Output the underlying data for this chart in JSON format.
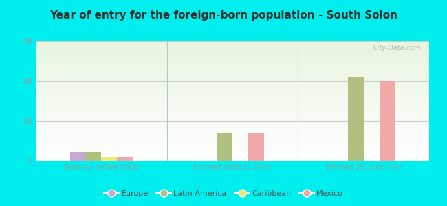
{
  "title": "Year of entry for the foreign-born population - South Solon",
  "background_color": "#00EEEE",
  "plot_bg_top": "#e8f5e0",
  "plot_bg_bottom": "#f5fff8",
  "categories": [
    "Entered before 2000",
    "Entered 2000 to 2009",
    "Entered 2010 or later"
  ],
  "series": {
    "Europe": [
      2,
      0,
      0
    ],
    "Latin America": [
      2,
      7,
      21
    ],
    "Caribbean": [
      1,
      0,
      0
    ],
    "Mexico": [
      1,
      7,
      20
    ]
  },
  "colors": {
    "Europe": "#c9a8d4",
    "Latin America": "#b0c080",
    "Caribbean": "#ede87a",
    "Mexico": "#f0a8a8"
  },
  "ylim": [
    0,
    30
  ],
  "yticks": [
    0,
    10,
    20,
    30
  ],
  "bar_width": 0.12,
  "watermark": "City-Data.com",
  "title_color": "#333333",
  "xlabel_color": "#7aabab",
  "tick_color": "#999999",
  "grid_color": "#cccccc",
  "legend_label_color": "#555555"
}
